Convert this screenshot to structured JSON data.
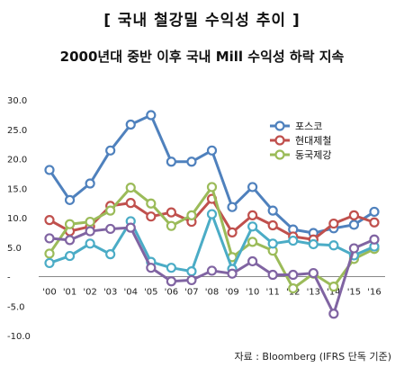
{
  "header": {
    "title": "[ 국내 철강밀 수익성 추이 ]",
    "subtitle": "2000년대 중반 이후 국내 Mill 수익성 하락 지속"
  },
  "footer": {
    "source": "자료 : Bloomberg (IFRS 단독 기준)"
  },
  "chart_data": {
    "type": "line",
    "categories": [
      "'00",
      "'01",
      "'02",
      "'03",
      "'04",
      "'05",
      "'06",
      "'07",
      "'08",
      "'09",
      "'10",
      "'11",
      "'12",
      "'13",
      "'14",
      "'15",
      "'16"
    ],
    "ylim": [
      -10,
      30
    ],
    "yticks": [
      "30.0",
      "25.0",
      "20.0",
      "15.0",
      "10.0",
      "5.0",
      "-",
      "-5.0",
      "-10.0"
    ],
    "grid": false,
    "legend_position": "top-right",
    "series": [
      {
        "name": "포스코",
        "color": "#4f81bd",
        "values": [
          18.1,
          13.0,
          15.8,
          21.4,
          25.8,
          27.4,
          19.5,
          19.5,
          21.4,
          11.8,
          15.2,
          11.2,
          8.0,
          7.4,
          8.2,
          8.8,
          11.0
        ]
      },
      {
        "name": "현대제철",
        "color": "#c0504d",
        "values": [
          9.6,
          7.7,
          8.5,
          12.0,
          12.5,
          10.2,
          10.9,
          9.3,
          13.2,
          7.5,
          10.4,
          8.7,
          6.8,
          6.3,
          9.0,
          10.4,
          9.2
        ]
      },
      {
        "name": "동국제강",
        "color": "#9bbb59",
        "values": [
          3.9,
          8.9,
          9.3,
          11.2,
          15.1,
          12.4,
          8.6,
          10.4,
          15.2,
          3.3,
          5.9,
          4.4,
          -2.0,
          0.5,
          -1.7,
          3.0,
          4.7
        ]
      },
      {
        "name": "",
        "color": "#4bacc6",
        "values": [
          2.3,
          3.5,
          5.6,
          3.8,
          9.4,
          2.5,
          1.5,
          0.9,
          10.6,
          1.3,
          8.5,
          5.6,
          6.1,
          5.5,
          5.3,
          3.6,
          5.1
        ]
      },
      {
        "name": "",
        "color": "#8064a2",
        "values": [
          6.5,
          6.2,
          7.7,
          8.1,
          8.3,
          1.5,
          -0.8,
          -0.6,
          1.0,
          0.5,
          2.6,
          0.3,
          0.3,
          0.6,
          -6.3,
          4.8,
          6.3
        ]
      }
    ]
  }
}
